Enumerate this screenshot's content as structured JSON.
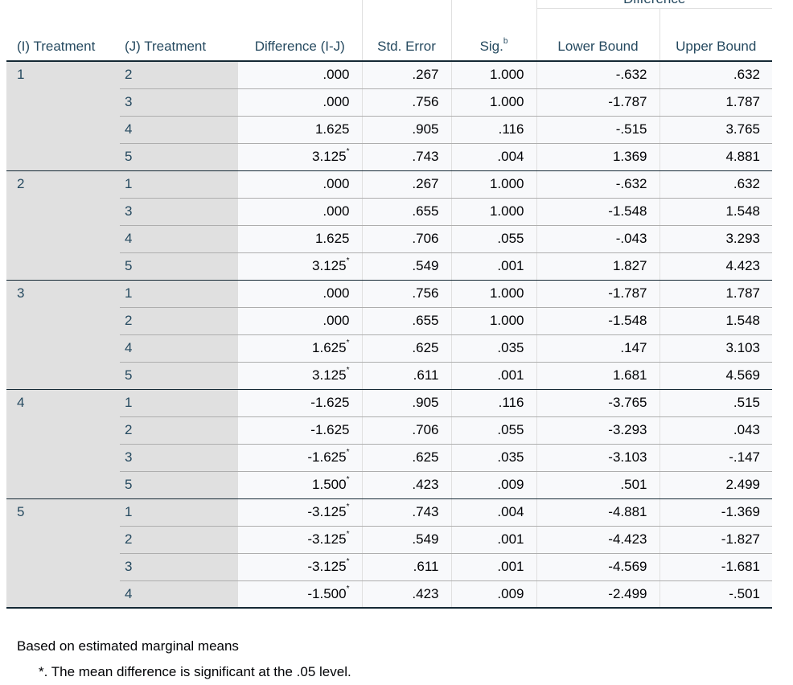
{
  "header": {
    "i_treatment": "(I) Treatment",
    "j_treatment": "(J) Treatment",
    "difference": "Difference (I-J)",
    "std_error": "Std. Error",
    "sig": "Sig.",
    "sig_sup": "b",
    "ci_label": "Difference",
    "lower_bound": "Lower Bound",
    "upper_bound": "Upper Bound"
  },
  "groups": [
    {
      "i": "1",
      "rows": [
        {
          "j": "2",
          "diff": ".000",
          "star": "",
          "se": ".267",
          "sig": "1.000",
          "lb": "-.632",
          "ub": ".632"
        },
        {
          "j": "3",
          "diff": ".000",
          "star": "",
          "se": ".756",
          "sig": "1.000",
          "lb": "-1.787",
          "ub": "1.787"
        },
        {
          "j": "4",
          "diff": "1.625",
          "star": "",
          "se": ".905",
          "sig": ".116",
          "lb": "-.515",
          "ub": "3.765"
        },
        {
          "j": "5",
          "diff": "3.125",
          "star": "*",
          "se": ".743",
          "sig": ".004",
          "lb": "1.369",
          "ub": "4.881"
        }
      ]
    },
    {
      "i": "2",
      "rows": [
        {
          "j": "1",
          "diff": ".000",
          "star": "",
          "se": ".267",
          "sig": "1.000",
          "lb": "-.632",
          "ub": ".632"
        },
        {
          "j": "3",
          "diff": ".000",
          "star": "",
          "se": ".655",
          "sig": "1.000",
          "lb": "-1.548",
          "ub": "1.548"
        },
        {
          "j": "4",
          "diff": "1.625",
          "star": "",
          "se": ".706",
          "sig": ".055",
          "lb": "-.043",
          "ub": "3.293"
        },
        {
          "j": "5",
          "diff": "3.125",
          "star": "*",
          "se": ".549",
          "sig": ".001",
          "lb": "1.827",
          "ub": "4.423"
        }
      ]
    },
    {
      "i": "3",
      "rows": [
        {
          "j": "1",
          "diff": ".000",
          "star": "",
          "se": ".756",
          "sig": "1.000",
          "lb": "-1.787",
          "ub": "1.787"
        },
        {
          "j": "2",
          "diff": ".000",
          "star": "",
          "se": ".655",
          "sig": "1.000",
          "lb": "-1.548",
          "ub": "1.548"
        },
        {
          "j": "4",
          "diff": "1.625",
          "star": "*",
          "se": ".625",
          "sig": ".035",
          "lb": ".147",
          "ub": "3.103"
        },
        {
          "j": "5",
          "diff": "3.125",
          "star": "*",
          "se": ".611",
          "sig": ".001",
          "lb": "1.681",
          "ub": "4.569"
        }
      ]
    },
    {
      "i": "4",
      "rows": [
        {
          "j": "1",
          "diff": "-1.625",
          "star": "",
          "se": ".905",
          "sig": ".116",
          "lb": "-3.765",
          "ub": ".515"
        },
        {
          "j": "2",
          "diff": "-1.625",
          "star": "",
          "se": ".706",
          "sig": ".055",
          "lb": "-3.293",
          "ub": ".043"
        },
        {
          "j": "3",
          "diff": "-1.625",
          "star": "*",
          "se": ".625",
          "sig": ".035",
          "lb": "-3.103",
          "ub": "-.147"
        },
        {
          "j": "5",
          "diff": "1.500",
          "star": "*",
          "se": ".423",
          "sig": ".009",
          "lb": ".501",
          "ub": "2.499"
        }
      ]
    },
    {
      "i": "5",
      "rows": [
        {
          "j": "1",
          "diff": "-3.125",
          "star": "*",
          "se": ".743",
          "sig": ".004",
          "lb": "-4.881",
          "ub": "-1.369"
        },
        {
          "j": "2",
          "diff": "-3.125",
          "star": "*",
          "se": ".549",
          "sig": ".001",
          "lb": "-4.423",
          "ub": "-1.827"
        },
        {
          "j": "3",
          "diff": "-3.125",
          "star": "*",
          "se": ".611",
          "sig": ".001",
          "lb": "-4.569",
          "ub": "-1.681"
        },
        {
          "j": "4",
          "diff": "-1.500",
          "star": "*",
          "se": ".423",
          "sig": ".009",
          "lb": "-2.499",
          "ub": "-.501"
        }
      ]
    }
  ],
  "footnotes": {
    "note1": "Based on estimated marginal means",
    "note2": "*. The mean difference is significant at the .05 level."
  },
  "colors": {
    "header_text": "#264a60",
    "row_label_bg": "#e0e0e0",
    "data_bg": "#f8f9fb",
    "rule": "#152935"
  }
}
